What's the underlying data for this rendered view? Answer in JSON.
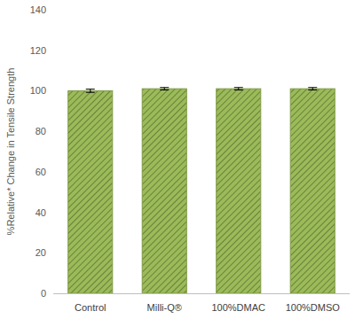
{
  "chart_data": {
    "type": "bar",
    "y_label": "%Relative* Change in Tensile Strength",
    "categories": [
      "Control",
      "Milli-Q®",
      "100%DMAC",
      "100%DMSO"
    ],
    "values": [
      100,
      101,
      101,
      101
    ],
    "errors": [
      0.8,
      0.6,
      0.6,
      0.6
    ],
    "color": "#9bbb59",
    "ylim": [
      0,
      140
    ],
    "yticks": [
      0,
      20,
      40,
      60,
      80,
      100,
      120,
      140
    ],
    "grid": false
  }
}
